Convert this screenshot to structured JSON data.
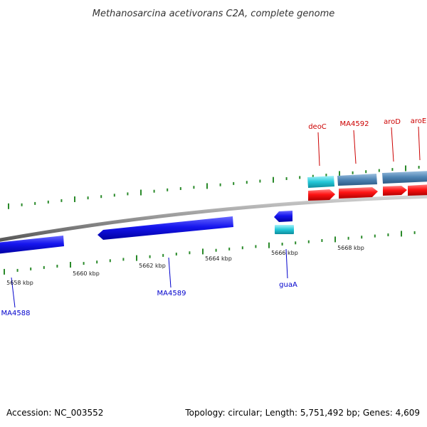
{
  "title": "Methanosarcina acetivorans C2A, complete genome",
  "footer": {
    "accession": "Accession: NC_003552",
    "summary": "Topology: circular; Length: 5,751,492 bp; Genes: 4,609"
  },
  "colors": {
    "backbone": "#888888",
    "tick": "#2a8a2a",
    "forward_gene": "#ff0000",
    "reverse_gene": "#1010ee",
    "cyan_feature": "#22c8d8",
    "steel_feature": "#4e84b4",
    "forward_label": "#cc0000",
    "reverse_label": "#0000cc"
  },
  "scale_labels": [
    "5658 kbp",
    "5660 kbp",
    "5662 kbp",
    "5664 kbp",
    "5666 kbp",
    "5668 kbp"
  ],
  "forward_genes": [
    "deoC",
    "MA4592",
    "aroD",
    "aroE"
  ],
  "reverse_genes": [
    "MA4588",
    "MA4589",
    "guaA"
  ]
}
